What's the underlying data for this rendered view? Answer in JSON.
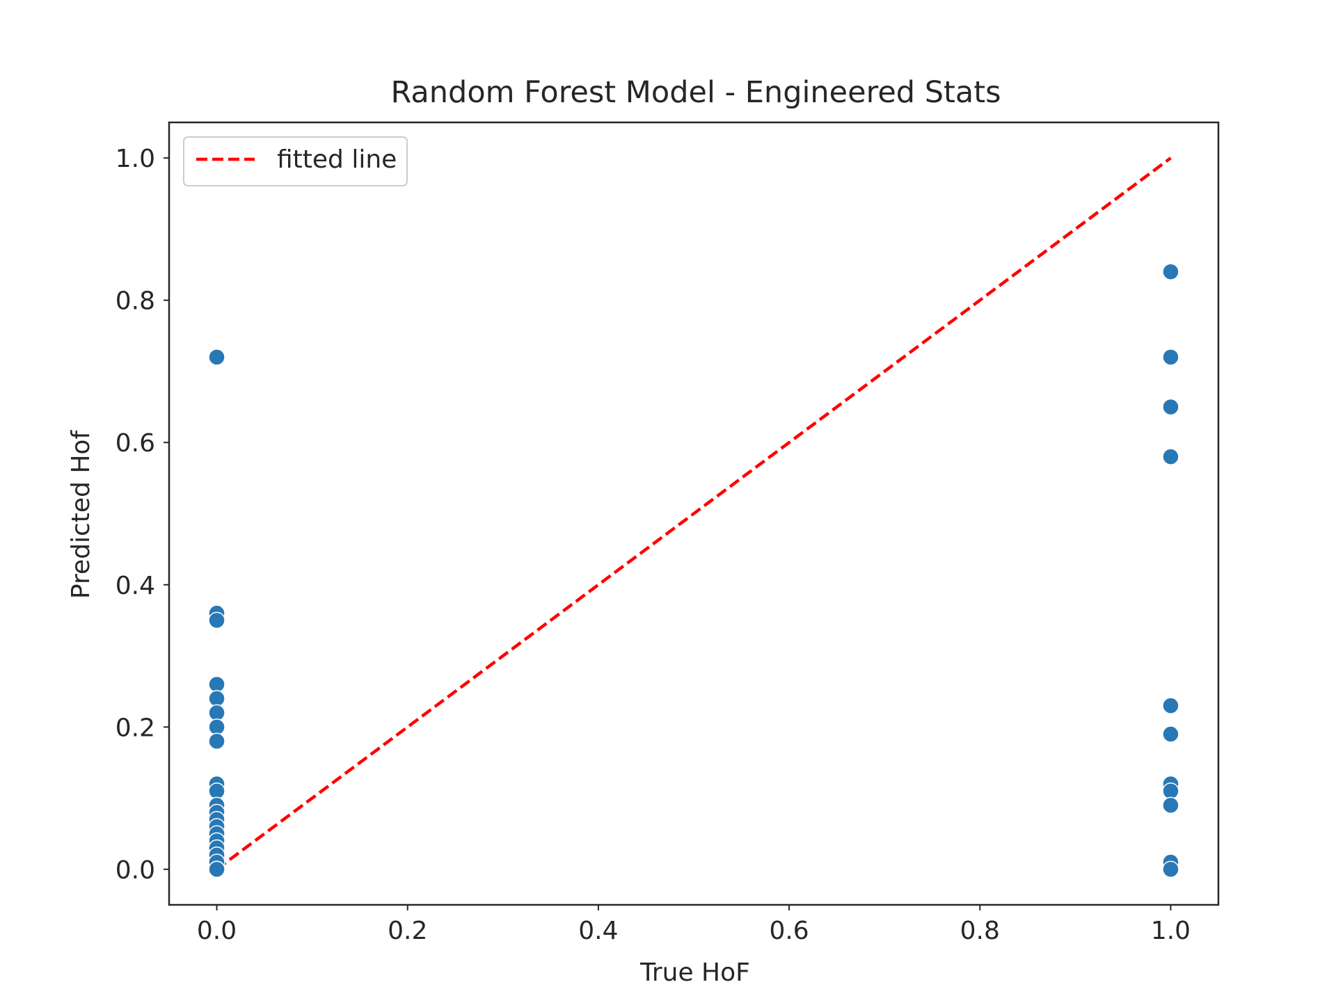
{
  "chart_data": {
    "type": "scatter",
    "title": "Random Forest Model - Engineered Stats",
    "xlabel": "True HoF",
    "ylabel": "Predicted Hof",
    "xlim": [
      -0.05,
      1.05
    ],
    "ylim": [
      -0.05,
      1.05
    ],
    "x_ticks": [
      0.0,
      0.2,
      0.4,
      0.6,
      0.8,
      1.0
    ],
    "y_ticks": [
      0.0,
      0.2,
      0.4,
      0.6,
      0.8,
      1.0
    ],
    "x_tick_labels": [
      "0.0",
      "0.2",
      "0.4",
      "0.6",
      "0.8",
      "1.0"
    ],
    "y_tick_labels": [
      "0.0",
      "0.2",
      "0.4",
      "0.6",
      "0.8",
      "1.0"
    ],
    "grid": false,
    "legend_position": "top-left",
    "series": [
      {
        "kind": "scatter",
        "color": "#2878b5",
        "x": [
          0,
          0,
          0,
          0,
          0,
          0,
          0,
          0,
          0,
          0,
          0,
          0,
          0,
          0,
          0,
          0,
          0,
          0,
          0,
          0,
          0,
          0,
          0,
          0,
          0,
          0,
          0,
          0,
          1,
          1,
          1,
          1,
          1,
          1,
          1,
          1,
          1,
          1,
          1
        ],
        "y": [
          0.72,
          0.36,
          0.35,
          0.26,
          0.24,
          0.22,
          0.2,
          0.18,
          0.12,
          0.11,
          0.09,
          0.08,
          0.07,
          0.06,
          0.05,
          0.04,
          0.03,
          0.02,
          0.01,
          0.0,
          0.0,
          0.0,
          0.0,
          0.0,
          0.0,
          0.0,
          0.0,
          0.0,
          0.84,
          0.72,
          0.65,
          0.58,
          0.23,
          0.19,
          0.12,
          0.11,
          0.09,
          0.01,
          0.0
        ]
      },
      {
        "kind": "line",
        "name": "fitted line",
        "color": "#ff0000",
        "style": "dashed",
        "x": [
          0,
          1
        ],
        "y": [
          0,
          1
        ]
      }
    ]
  }
}
